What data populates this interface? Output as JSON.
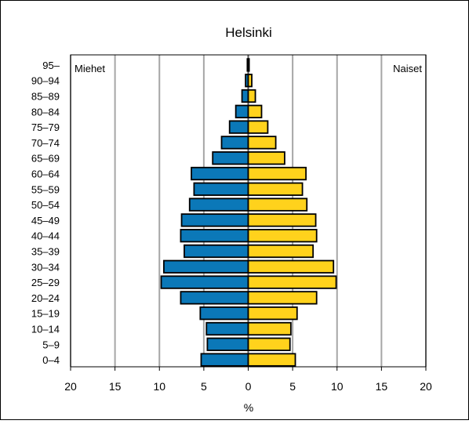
{
  "chart_data": {
    "type": "bar",
    "title": "Helsinki",
    "xlabel": "%",
    "ylabel": "",
    "xlim": [
      -20,
      20
    ],
    "x_ticks": [
      -20,
      -15,
      -10,
      -5,
      0,
      5,
      10,
      15,
      20
    ],
    "x_tick_labels": [
      "20",
      "15",
      "10",
      "5",
      "0",
      "5",
      "10",
      "15",
      "20"
    ],
    "categories": [
      "0–4",
      "5–9",
      "10–14",
      "15–19",
      "20–24",
      "25–29",
      "30–34",
      "35–39",
      "40–44",
      "45–49",
      "50–54",
      "55–59",
      "60–64",
      "65–69",
      "70–74",
      "75–79",
      "80–84",
      "85–89",
      "90–94",
      "95–"
    ],
    "series": [
      {
        "name": "Miehet",
        "color": "#0b78b8",
        "values": [
          5.3,
          4.6,
          4.7,
          5.4,
          7.6,
          9.8,
          9.5,
          7.2,
          7.6,
          7.5,
          6.6,
          6.1,
          6.4,
          4.0,
          3.0,
          2.1,
          1.4,
          0.7,
          0.3,
          0.1
        ]
      },
      {
        "name": "Naiset",
        "color": "#ffd21c",
        "values": [
          5.3,
          4.7,
          4.8,
          5.5,
          7.7,
          9.9,
          9.6,
          7.3,
          7.7,
          7.6,
          6.6,
          6.1,
          6.5,
          4.1,
          3.1,
          2.2,
          1.5,
          0.8,
          0.4,
          0.1
        ]
      }
    ],
    "legend": {
      "left_label": "Miehet",
      "right_label": "Naiset",
      "placement": "top-corners"
    },
    "grid": true,
    "grid_color": "#a6a6a6",
    "bar_outline_color": "#000000"
  }
}
